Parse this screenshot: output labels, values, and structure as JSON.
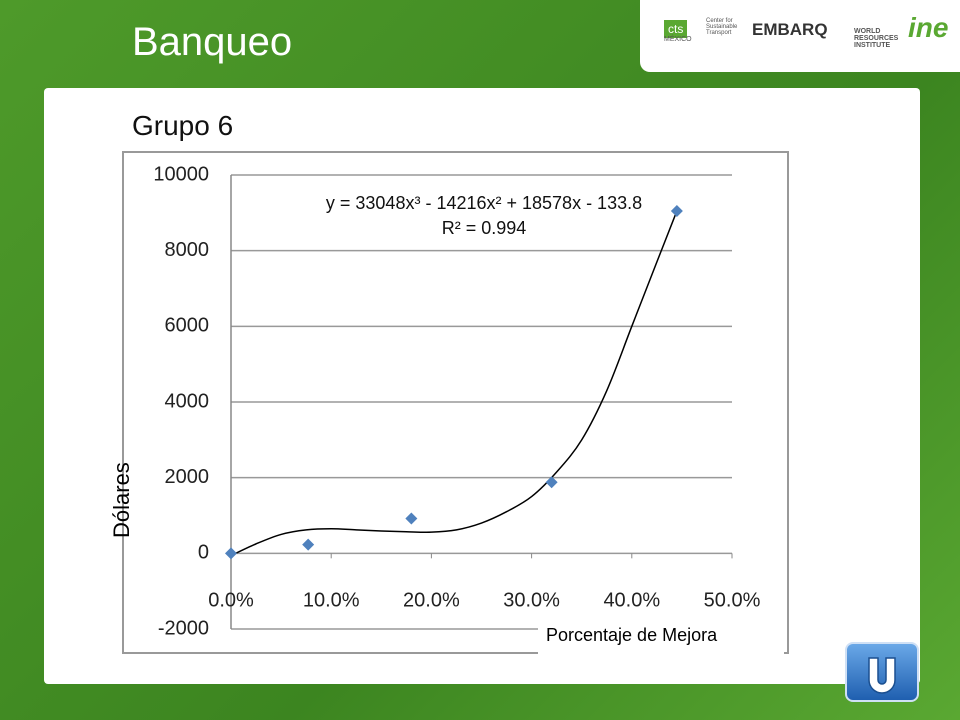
{
  "header": {
    "title": "Banqueo",
    "logos": [
      "cts",
      "MÉXICO",
      "Center for Sustainable Transport",
      "EMBARQ",
      "WORLD RESOURCES INSTITUTE",
      "ine"
    ]
  },
  "subtitle": "Grupo 6",
  "chart_data": {
    "type": "scatter",
    "xlabel": "Porcentaje de Mejora",
    "ylabel": "Dólares",
    "annotation": [
      "y = 33048x³ - 14216x² + 18578x - 133.8",
      "R² = 0.994"
    ],
    "x": [
      0,
      7.7,
      18,
      32,
      44.5
    ],
    "values": [
      0,
      230,
      920,
      1880,
      9050
    ],
    "color": "#4f81bd",
    "trendline": {
      "x": [
        0,
        2.5,
        5,
        7.5,
        10,
        12.5,
        15,
        17.5,
        20,
        22.5,
        25,
        27.5,
        30,
        32.5,
        35,
        37.5,
        40,
        42.5,
        44.5
      ],
      "values": [
        -60,
        250,
        500,
        620,
        650,
        620,
        590,
        570,
        560,
        620,
        800,
        1100,
        1500,
        2150,
        3000,
        4300,
        6000,
        7700,
        9050
      ],
      "color": "#000000"
    },
    "xlim": [
      0,
      50
    ],
    "ylim": [
      -2000,
      10000
    ],
    "xticks": [
      {
        "value": 0,
        "label": "0.0%"
      },
      {
        "value": 10,
        "label": "10.0%"
      },
      {
        "value": 20,
        "label": "20.0%"
      },
      {
        "value": 30,
        "label": "30.0%"
      },
      {
        "value": 40,
        "label": "40.0%"
      },
      {
        "value": 50,
        "label": "50.0%"
      }
    ],
    "yticks": [
      -2000,
      0,
      2000,
      4000,
      6000,
      8000,
      10000
    ],
    "grid": true
  }
}
